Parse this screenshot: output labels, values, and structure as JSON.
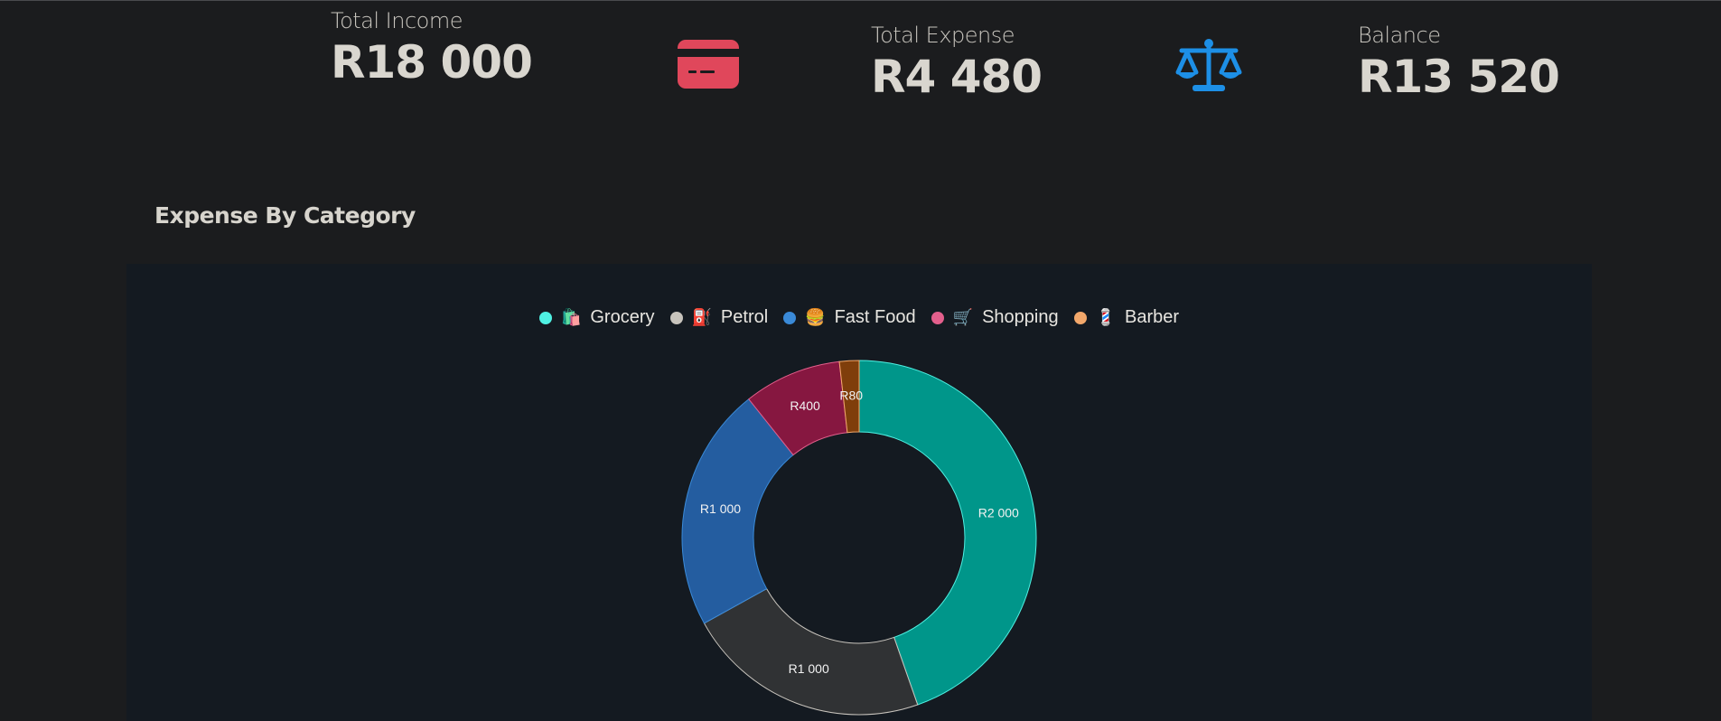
{
  "summary": {
    "income": {
      "label": "Total Income",
      "value": "R18 000"
    },
    "expense": {
      "label": "Total Expense",
      "value": "R4 480",
      "icon": "credit-card-icon",
      "icon_color": "#e0475b"
    },
    "balance": {
      "label": "Balance",
      "value": "R13 520",
      "icon": "scale-balance-icon",
      "icon_color": "#1d8fe6"
    }
  },
  "section": {
    "title": "Expense By Category"
  },
  "legend": [
    {
      "emoji": "🛍️",
      "label": "Grocery",
      "dot_color": "#4ff1e3"
    },
    {
      "emoji": "⛽",
      "label": "Petrol",
      "dot_color": "#c8c4bd"
    },
    {
      "emoji": "🍔",
      "label": "Fast Food",
      "dot_color": "#3a8ad8"
    },
    {
      "emoji": "🛒",
      "label": "Shopping",
      "dot_color": "#e35f8c"
    },
    {
      "emoji": "💈",
      "label": "Barber",
      "dot_color": "#f3a86b"
    }
  ],
  "chart_data": {
    "type": "pie",
    "variant": "doughnut",
    "categories": [
      "Grocery",
      "Petrol",
      "Fast Food",
      "Shopping",
      "Barber"
    ],
    "values": [
      2000,
      1000,
      1000,
      400,
      80
    ],
    "labels": [
      "R2 000",
      "R1 000",
      "R1 000",
      "R400",
      "R80"
    ],
    "colors": [
      "#00968a",
      "#303234",
      "#245da0",
      "#861740",
      "#7f3e0b"
    ],
    "border_colors": [
      "#4ff1e3",
      "#c8c4bd",
      "#3a8ad8",
      "#e35f8c",
      "#f3a86b"
    ],
    "legend_position": "top"
  }
}
